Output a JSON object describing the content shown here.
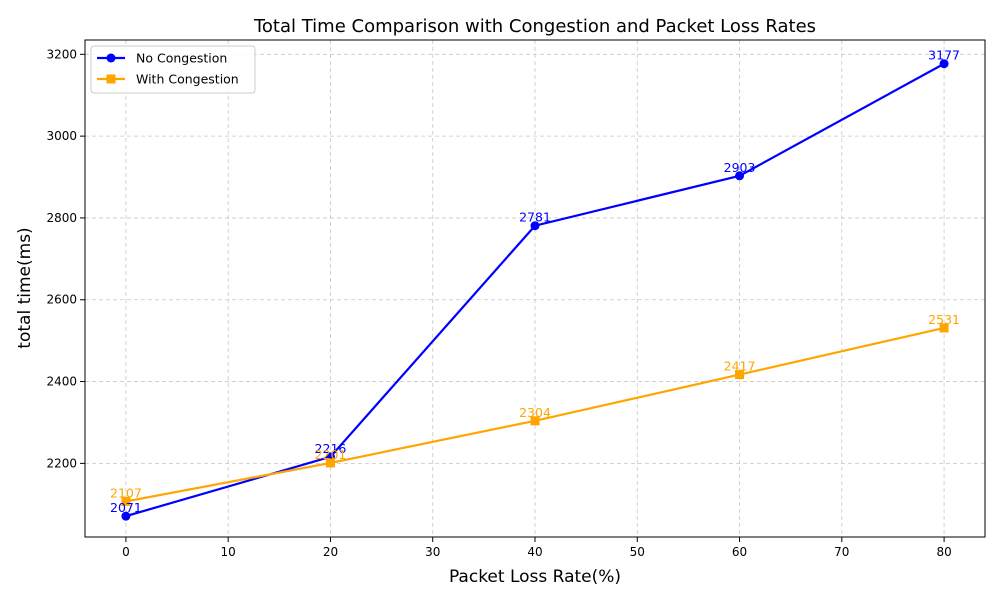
{
  "chart_data": {
    "type": "line",
    "title": "Total Time Comparison with Congestion and Packet Loss Rates",
    "xlabel": "Packet Loss Rate(%)",
    "ylabel": "total time(ms)",
    "x": [
      0,
      20,
      40,
      60,
      80
    ],
    "xlim": [
      -4,
      84
    ],
    "ylim": [
      2020,
      3235
    ],
    "xticks": [
      0,
      10,
      20,
      30,
      40,
      50,
      60,
      70,
      80
    ],
    "yticks": [
      2200,
      2400,
      2600,
      2800,
      3000,
      3200
    ],
    "grid": true,
    "legend_position": "top-left",
    "series": [
      {
        "name": "No Congestion",
        "color": "#0000ff",
        "marker": "circle",
        "values": [
          2071,
          2216,
          2781,
          2903,
          3177
        ],
        "labels": [
          "2071",
          "2216",
          "2781",
          "2903",
          "3177"
        ]
      },
      {
        "name": "With Congestion",
        "color": "#ffa500",
        "marker": "square",
        "values": [
          2107,
          2201,
          2304,
          2417,
          2531
        ],
        "labels": [
          "2107",
          "2201",
          "2304",
          "2417",
          "2531"
        ]
      }
    ]
  }
}
